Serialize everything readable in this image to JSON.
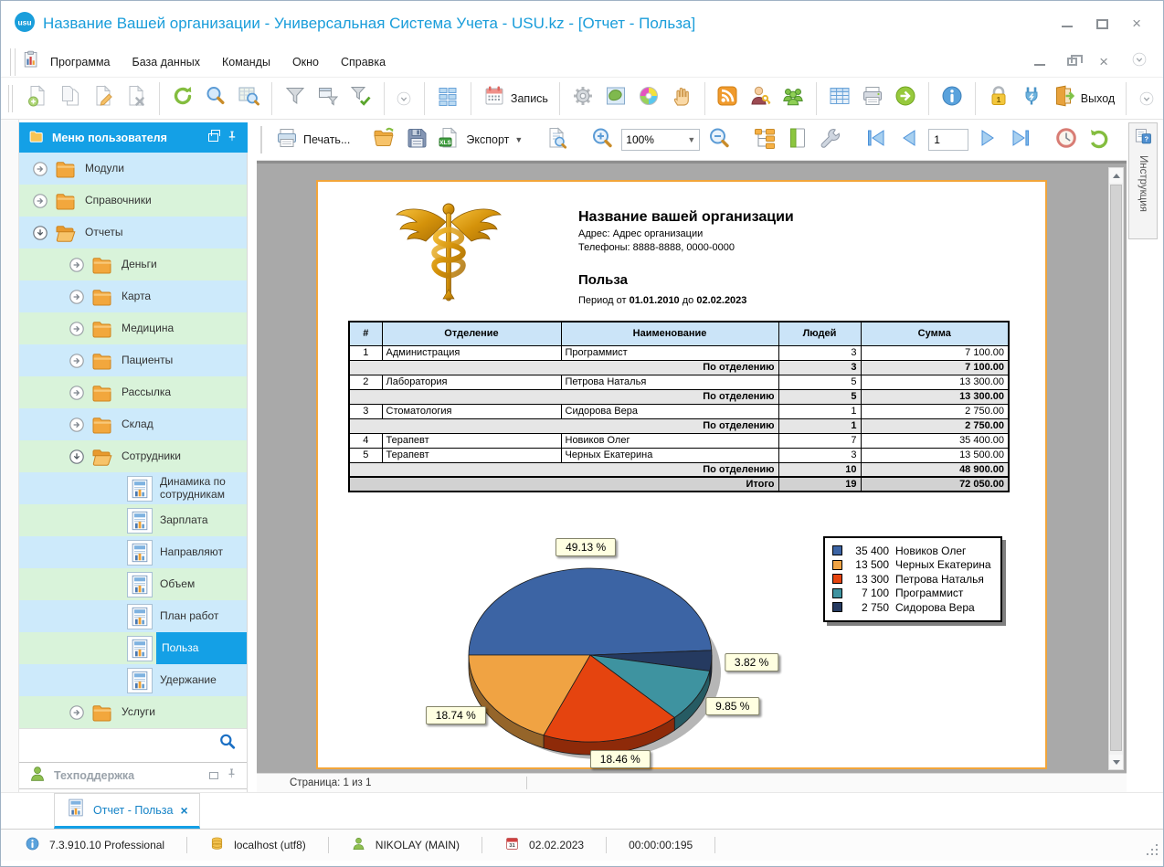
{
  "window": {
    "title": "Название Вашей организации - Универсальная Система Учета - USU.kz - [Отчет - Польза]",
    "logo_text": "usu"
  },
  "menu_bar": {
    "items": [
      "Программа",
      "База данных",
      "Команды",
      "Окно",
      "Справка"
    ]
  },
  "toolbar_main": {
    "groups": [
      {
        "items": [
          {
            "icon": "page-add",
            "dim": true
          },
          {
            "icon": "page-copy",
            "dim": true
          },
          {
            "icon": "page-edit",
            "dim": true
          },
          {
            "icon": "page-delete",
            "dim": true
          }
        ]
      },
      {
        "items": [
          {
            "icon": "refresh"
          },
          {
            "icon": "search"
          },
          {
            "icon": "search-grid"
          }
        ]
      },
      {
        "items": [
          {
            "icon": "filter"
          },
          {
            "icon": "filter-window"
          },
          {
            "icon": "filter-check"
          }
        ]
      },
      {
        "items": [
          {
            "kind": "chevron"
          }
        ]
      },
      {
        "items": [
          {
            "icon": "tiles"
          }
        ]
      },
      {
        "items": [
          {
            "icon": "calendar",
            "label": "Запись"
          }
        ]
      },
      {
        "items": [
          {
            "icon": "gear"
          },
          {
            "icon": "map"
          },
          {
            "icon": "colors"
          },
          {
            "icon": "hand"
          }
        ]
      },
      {
        "items": [
          {
            "icon": "rss"
          },
          {
            "icon": "user-key"
          },
          {
            "icon": "users"
          }
        ]
      },
      {
        "items": [
          {
            "icon": "table"
          },
          {
            "icon": "printer"
          },
          {
            "icon": "arrow-right"
          }
        ]
      },
      {
        "items": [
          {
            "icon": "info"
          }
        ]
      },
      {
        "items": [
          {
            "icon": "lock"
          },
          {
            "icon": "plug"
          },
          {
            "icon": "exit",
            "label": "Выход"
          }
        ]
      },
      {
        "items": [
          {
            "kind": "chevron"
          }
        ]
      }
    ]
  },
  "toolbar_report": {
    "groups": [
      {
        "items": [
          {
            "icon": "print",
            "label": "Печать..."
          }
        ]
      },
      {
        "items": [
          {
            "icon": "folder-open"
          },
          {
            "icon": "save"
          },
          {
            "icon": "export-xls",
            "label": "Экспорт",
            "dropdown": true
          }
        ]
      },
      {
        "items": [
          {
            "icon": "preview"
          }
        ]
      },
      {
        "items": [
          {
            "icon": "zoom-in"
          },
          {
            "kind": "combo",
            "value": "100%"
          },
          {
            "icon": "zoom-out"
          }
        ]
      },
      {
        "items": [
          {
            "icon": "structure"
          },
          {
            "icon": "page-green"
          },
          {
            "icon": "wrench"
          }
        ]
      },
      {
        "items": [
          {
            "icon": "nav-first"
          },
          {
            "icon": "nav-prev"
          },
          {
            "kind": "input",
            "value": "1"
          },
          {
            "icon": "nav-next"
          },
          {
            "icon": "nav-last"
          }
        ]
      },
      {
        "items": [
          {
            "icon": "clock"
          },
          {
            "icon": "undo"
          }
        ]
      },
      {
        "items": [
          {
            "kind": "chevron"
          }
        ]
      }
    ]
  },
  "sidebar": {
    "header": {
      "title": "Меню пользователя"
    },
    "tree": [
      {
        "label": "Модули",
        "level": 0,
        "icon": "folder",
        "expand": "collapsed",
        "bg": "blue"
      },
      {
        "label": "Справочники",
        "level": 0,
        "icon": "folder",
        "expand": "collapsed",
        "bg": "green"
      },
      {
        "label": "Отчеты",
        "level": 0,
        "icon": "folder-tree-open",
        "expand": "expanded",
        "bg": "blue"
      },
      {
        "label": "Деньги",
        "level": 1,
        "icon": "folder",
        "expand": "collapsed",
        "bg": "green"
      },
      {
        "label": "Карта",
        "level": 1,
        "icon": "folder",
        "expand": "collapsed",
        "bg": "blue"
      },
      {
        "label": "Медицина",
        "level": 1,
        "icon": "folder",
        "expand": "collapsed",
        "bg": "green"
      },
      {
        "label": "Пациенты",
        "level": 1,
        "icon": "folder",
        "expand": "collapsed",
        "bg": "blue"
      },
      {
        "label": "Рассылка",
        "level": 1,
        "icon": "folder",
        "expand": "collapsed",
        "bg": "green"
      },
      {
        "label": "Склад",
        "level": 1,
        "icon": "folder",
        "expand": "collapsed",
        "bg": "blue"
      },
      {
        "label": "Сотрудники",
        "level": 1,
        "icon": "folder-tree-open",
        "expand": "expanded",
        "bg": "green"
      },
      {
        "label": "Динамика по сотрудникам",
        "level": 2,
        "icon": "report",
        "bg": "blue"
      },
      {
        "label": "Зарплата",
        "level": 2,
        "icon": "report",
        "bg": "green"
      },
      {
        "label": "Направляют",
        "level": 2,
        "icon": "report",
        "bg": "blue"
      },
      {
        "label": "Объем",
        "level": 2,
        "icon": "report",
        "bg": "green"
      },
      {
        "label": "План работ",
        "level": 2,
        "icon": "report",
        "bg": "blue"
      },
      {
        "label": "Польза",
        "level": 2,
        "icon": "report",
        "bg": "green",
        "selected": true
      },
      {
        "label": "Удержание",
        "level": 2,
        "icon": "report",
        "bg": "blue"
      },
      {
        "label": "Услуги",
        "level": 1,
        "icon": "folder",
        "expand": "collapsed",
        "bg": "green"
      }
    ],
    "support": {
      "label": "Техподдержка"
    }
  },
  "instruction_tab": {
    "label": "Инструкция"
  },
  "document": {
    "org_name": "Название вашей организации",
    "address": "Адрес: Адрес организации",
    "phones": "Телефоны: 8888-8888, 0000-0000",
    "report_title": "Польза",
    "period": {
      "prefix": "Период от",
      "from": "01.01.2010",
      "mid": "до",
      "to": "02.02.2023"
    },
    "table": {
      "columns": [
        "#",
        "Отделение",
        "Наименование",
        "Людей",
        "Сумма"
      ],
      "rows": [
        {
          "type": "data",
          "num": "1",
          "dept": "Администрация",
          "name": "Программист",
          "people": "3",
          "sum": "7 100.00"
        },
        {
          "type": "subtotal",
          "label": "По отделению",
          "people": "3",
          "sum": "7 100.00"
        },
        {
          "type": "data",
          "num": "2",
          "dept": "Лаборатория",
          "name": "Петрова Наталья",
          "people": "5",
          "sum": "13 300.00"
        },
        {
          "type": "subtotal",
          "label": "По отделению",
          "people": "5",
          "sum": "13 300.00"
        },
        {
          "type": "data",
          "num": "3",
          "dept": "Стоматология",
          "name": "Сидорова Вера",
          "people": "1",
          "sum": "2 750.00"
        },
        {
          "type": "subtotal",
          "label": "По отделению",
          "people": "1",
          "sum": "2 750.00"
        },
        {
          "type": "data",
          "num": "4",
          "dept": "Терапевт",
          "name": "Новиков Олег",
          "people": "7",
          "sum": "35 400.00"
        },
        {
          "type": "data",
          "num": "5",
          "dept": "Терапевт",
          "name": "Черных Екатерина",
          "people": "3",
          "sum": "13 500.00"
        },
        {
          "type": "subtotal",
          "label": "По отделению",
          "people": "10",
          "sum": "48 900.00"
        },
        {
          "type": "total",
          "label": "Итого",
          "people": "19",
          "sum": "72 050.00"
        }
      ]
    },
    "page_status": "Страница: 1 из 1"
  },
  "chart_data": {
    "type": "pie",
    "title": "Польза",
    "start_angle_deg": 180,
    "direction": "clockwise",
    "series": [
      {
        "name": "Новиков Олег",
        "value": 35400,
        "percent": 49.13,
        "percent_label": "49.13 %",
        "color": "#3c64a4"
      },
      {
        "name": "Сидорова Вера",
        "value": 2750,
        "percent": 3.82,
        "percent_label": "3.82 %",
        "color": "#253a60"
      },
      {
        "name": "Программист",
        "value": 7100,
        "percent": 9.85,
        "percent_label": "9.85 %",
        "color": "#3e93a0"
      },
      {
        "name": "Петрова Наталья",
        "value": 13300,
        "percent": 18.46,
        "percent_label": "18.46 %",
        "color": "#e5440f"
      },
      {
        "name": "Черных Екатерина",
        "value": 13500,
        "percent": 18.74,
        "percent_label": "18.74 %",
        "color": "#f0a343"
      }
    ],
    "legend": [
      {
        "value": "35 400",
        "name": "Новиков Олег",
        "color": "#3c64a4"
      },
      {
        "value": "13 500",
        "name": "Черных Екатерина",
        "color": "#f0a343"
      },
      {
        "value": "13 300",
        "name": "Петрова Наталья",
        "color": "#e5440f"
      },
      {
        "value": "7 100",
        "name": "Программист",
        "color": "#3e93a0"
      },
      {
        "value": "2 750",
        "name": "Сидорова Вера",
        "color": "#253a60"
      }
    ],
    "legend_position": "top-right",
    "total": 72050
  },
  "bottom_tab": {
    "label": "Отчет - Польза"
  },
  "status_bar": {
    "version": "7.3.910.10 Professional",
    "database": "localhost (utf8)",
    "user": "NIKOLAY (MAIN)",
    "date": "02.02.2023",
    "time": "00:00:00:195"
  },
  "colors": {
    "accent_blue": "#14a0e6",
    "page_border": "#f2a53a",
    "tree_row_blue": "#cdeafb",
    "tree_row_green": "#d9f3da",
    "table_header_bg": "#cbe4f8"
  }
}
